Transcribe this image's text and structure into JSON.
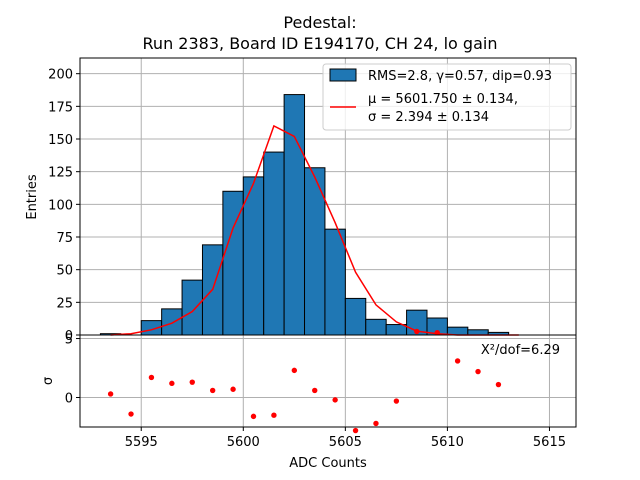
{
  "chart_data": {
    "type": "bar",
    "title": "Pedestal:",
    "subtitle": "Run 2383, Board ID E194170, CH 24, lo gain",
    "xlabel": "ADC Counts",
    "ylabel_top": "Entries",
    "ylabel_bottom": "σ",
    "xlim": [
      5592,
      5616.3
    ],
    "ylim_top": [
      0,
      212
    ],
    "ylim_bottom": [
      -2.5,
      5.3
    ],
    "xticks": [
      5595,
      5600,
      5605,
      5610,
      5615
    ],
    "yticks_top": [
      0,
      25,
      50,
      75,
      100,
      125,
      150,
      175,
      200
    ],
    "yticks_bottom": [
      0,
      5
    ],
    "grid": true,
    "legend_position": "top-right",
    "legend": {
      "hist_label": "RMS=2.8, γ=0.57, dip=0.93",
      "fit_label_line1": "μ = 5601.750 ± 0.134,",
      "fit_label_line2": "σ = 2.394 ± 0.134"
    },
    "annotation": "X²/dof=6.29",
    "histogram": {
      "bin_edges": [
        5593,
        5594,
        5595,
        5596,
        5597,
        5598,
        5599,
        5600,
        5601,
        5602,
        5603,
        5604,
        5605,
        5606,
        5607,
        5608,
        5609,
        5610,
        5611,
        5612,
        5613
      ],
      "counts": [
        1,
        0,
        11,
        20,
        42,
        69,
        110,
        121,
        140,
        184,
        128,
        81,
        28,
        12,
        8,
        19,
        13,
        6,
        4,
        2
      ],
      "color": "#1f77b4",
      "edgecolor": "#000000"
    },
    "fit_curve": {
      "x": [
        5593.5,
        5594.5,
        5595.5,
        5596.5,
        5597.5,
        5598.5,
        5599.5,
        5600.5,
        5601.5,
        5602.5,
        5603.5,
        5604.5,
        5605.5,
        5606.5,
        5607.5,
        5608.5,
        5609.5,
        5610.5,
        5611.5,
        5612.5,
        5613.5
      ],
      "y": [
        0,
        1,
        4,
        9,
        18,
        35,
        82,
        116,
        160,
        152,
        121,
        86,
        48,
        23,
        10,
        3,
        1,
        0,
        0,
        0,
        0
      ],
      "color": "#ff0000"
    },
    "residuals": {
      "x": [
        5593.5,
        5594.5,
        5595.5,
        5596.5,
        5597.5,
        5598.5,
        5599.5,
        5600.5,
        5601.5,
        5602.5,
        5603.5,
        5604.5,
        5605.5,
        5606.5,
        5607.5,
        5608.5,
        5609.5,
        5610.5,
        5611.5,
        5612.5
      ],
      "y": [
        0.3,
        -1.4,
        1.7,
        1.2,
        1.3,
        0.6,
        0.7,
        -1.6,
        -1.5,
        2.3,
        0.6,
        -0.2,
        -2.8,
        -2.2,
        -0.3,
        5.6,
        5.5,
        3.1,
        2.2,
        1.1
      ],
      "color": "#ff0000"
    }
  }
}
